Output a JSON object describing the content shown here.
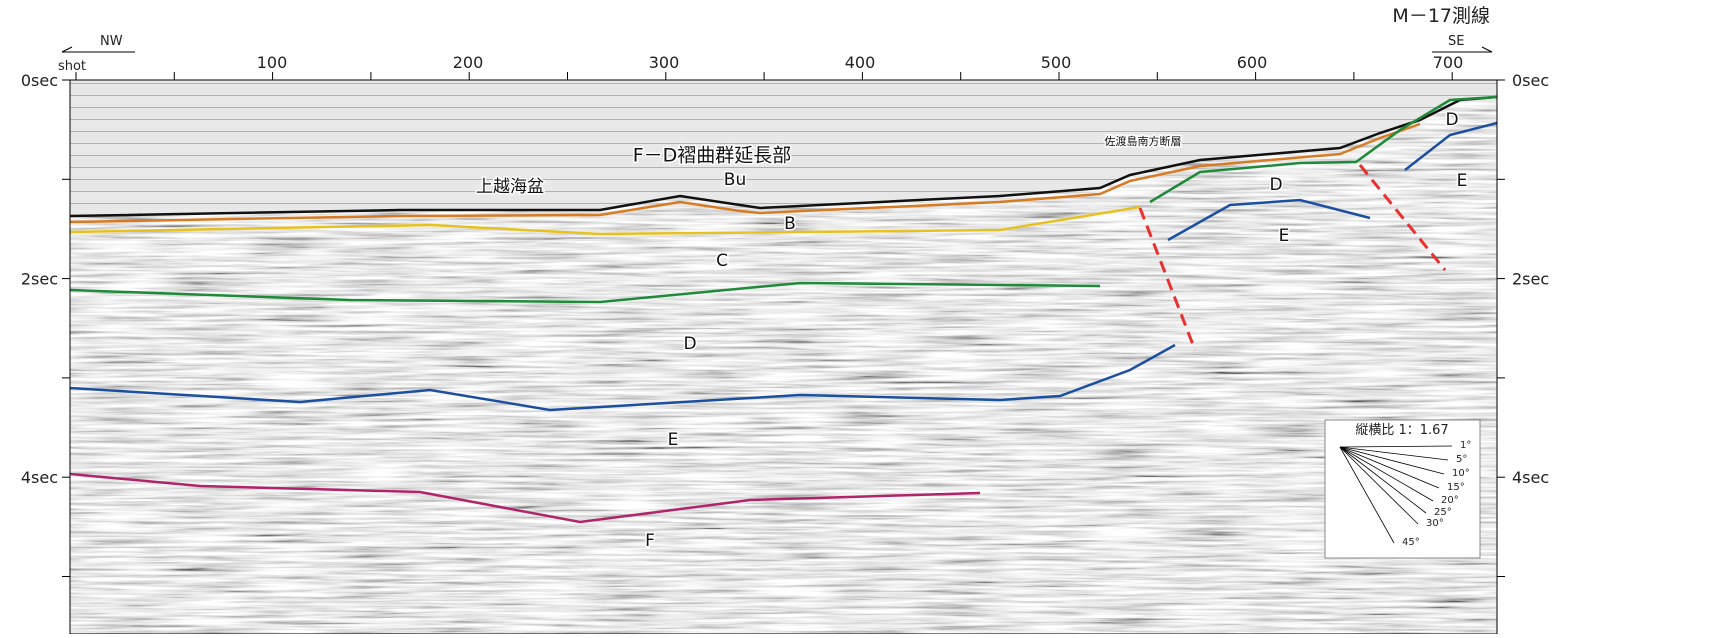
{
  "header": {
    "line_name": "M－17測線",
    "left_dir": "NW",
    "right_dir": "SE",
    "x_axis_label": "shot"
  },
  "axes": {
    "top_ticks": [
      "100",
      "200",
      "300",
      "400",
      "500",
      "600",
      "700"
    ],
    "left_ticks": [
      "0sec",
      "2sec",
      "4sec"
    ],
    "right_ticks": [
      "0sec",
      "2sec",
      "4sec"
    ]
  },
  "annotations": {
    "basin": "上越海盆",
    "fold_zone": "F－D褶曲群延長部",
    "fault": "佐渡島南方断層"
  },
  "horizon_labels": {
    "bu": "Bu",
    "b": "B",
    "c": "C",
    "d_left": "D",
    "e_left": "E",
    "f": "F",
    "d_mid": "D",
    "e_mid": "E",
    "d_right": "D",
    "e_right": "E"
  },
  "scale_box": {
    "title": "縦横比 1：1.67",
    "angles": [
      "1°",
      "5°",
      "10°",
      "15°",
      "20°",
      "25°",
      "30°",
      "45°"
    ]
  }
}
